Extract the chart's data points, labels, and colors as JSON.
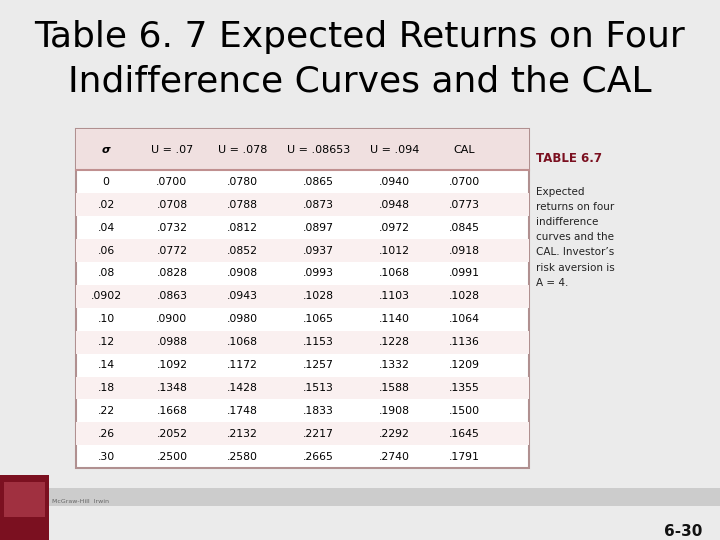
{
  "title": "Table 6. 7 Expected Returns on Four\nIndifference Curves and the CAL",
  "title_fontsize": 26,
  "page_number": "6-30",
  "table_label": "TABLE 6.7",
  "table_caption": "Expected\nreturns on four\nindifference\ncurves and the\nCAL. Investor’s\nrisk aversion is\nA = 4.",
  "col_headers": [
    "σ",
    "U = .07",
    "U = .078",
    "U = .08653",
    "U = .094",
    "CAL"
  ],
  "rows": [
    [
      "0",
      ".0700",
      ".0780",
      ".0865",
      ".0940",
      ".0700"
    ],
    [
      ".02",
      ".0708",
      ".0788",
      ".0873",
      ".0948",
      ".0773"
    ],
    [
      ".04",
      ".0732",
      ".0812",
      ".0897",
      ".0972",
      ".0845"
    ],
    [
      ".06",
      ".0772",
      ".0852",
      ".0937",
      ".1012",
      ".0918"
    ],
    [
      ".08",
      ".0828",
      ".0908",
      ".0993",
      ".1068",
      ".0991"
    ],
    [
      ".0902",
      ".0863",
      ".0943",
      ".1028",
      ".1103",
      ".1028"
    ],
    [
      ".10",
      ".0900",
      ".0980",
      ".1065",
      ".1140",
      ".1064"
    ],
    [
      ".12",
      ".0988",
      ".1068",
      ".1153",
      ".1228",
      ".1136"
    ],
    [
      ".14",
      ".1092",
      ".1172",
      ".1257",
      ".1332",
      ".1209"
    ],
    [
      ".18",
      ".1348",
      ".1428",
      ".1513",
      ".1588",
      ".1355"
    ],
    [
      ".22",
      ".1668",
      ".1748",
      ".1833",
      ".1908",
      ".1500"
    ],
    [
      ".26",
      ".2052",
      ".2132",
      ".2217",
      ".2292",
      ".1645"
    ],
    [
      ".30",
      ".2500",
      ".2580",
      ".2665",
      ".2740",
      ".1791"
    ]
  ],
  "bg_color": "#ebebeb",
  "table_bg": "#ffffff",
  "header_bg": "#f0e0e0",
  "row_alt_bg": "#faf0f0",
  "row_normal_bg": "#ffffff",
  "border_color": "#b09090",
  "header_text_color": "#000000",
  "table_label_color": "#7b1020",
  "caption_color": "#222222",
  "title_color": "#000000",
  "footer_bar_color": "#cccccc",
  "logo_dark_red": "#7b1020",
  "separator_color": "#c09090"
}
